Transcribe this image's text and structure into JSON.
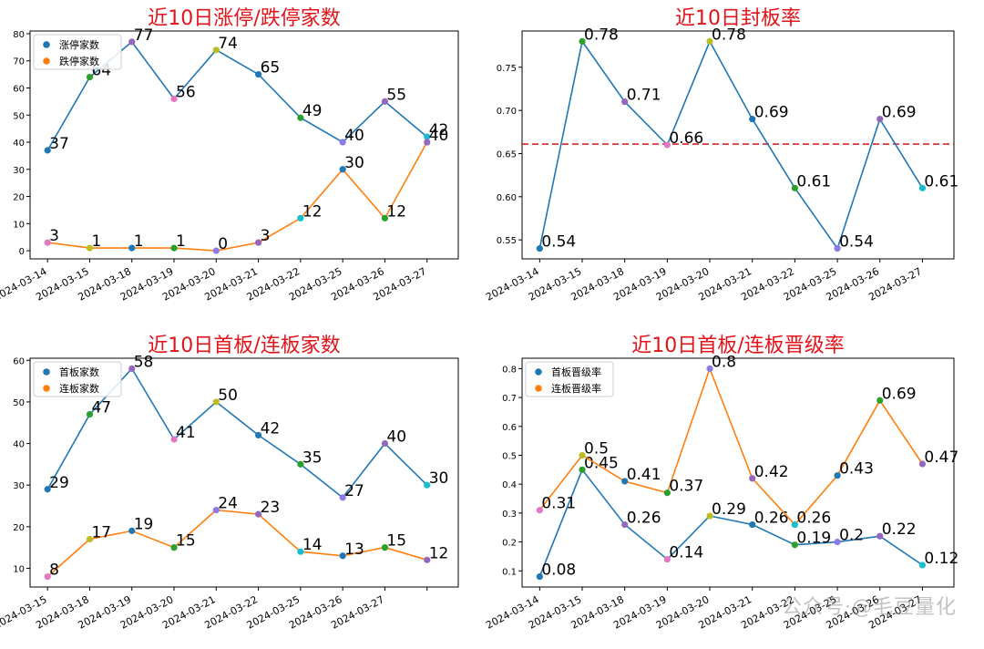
{
  "watermark": "公众号·@毛豆量化",
  "colors": {
    "title": "#e3131a",
    "series1": "#1f77b4",
    "series2": "#ff7f0e",
    "refline": "#d62728",
    "points": [
      "#1f77b4",
      "#2ca02c",
      "#9467bd",
      "#e377c2",
      "#bcbd22",
      "#1f77b4",
      "#2ca02c",
      "#8c7ae6",
      "#9467bd",
      "#17becf"
    ]
  },
  "chart_data": [
    {
      "type": "line",
      "title": "近10日涨停/跌停家数",
      "categories": [
        "2024-03-14",
        "2024-03-15",
        "2024-03-18",
        "2024-03-19",
        "2024-03-20",
        "2024-03-21",
        "2024-03-22",
        "2024-03-25",
        "2024-03-26",
        "2024-03-27"
      ],
      "ylim": [
        -3,
        81
      ],
      "yticks": [
        0,
        10,
        20,
        30,
        40,
        50,
        60,
        70,
        80
      ],
      "ytick_labels": [
        "0",
        "10",
        "20",
        "30",
        "40",
        "50",
        "60",
        "70",
        "80"
      ],
      "legend": "top-left",
      "series": [
        {
          "name": "涨停家数",
          "values": [
            37,
            64,
            77,
            56,
            74,
            65,
            49,
            40,
            55,
            42
          ],
          "labels": [
            "37",
            "64",
            "77",
            "56",
            "74",
            "65",
            "49",
            "40",
            "55",
            "42"
          ]
        },
        {
          "name": "跌停家数",
          "values": [
            3,
            1,
            1,
            1,
            0,
            3,
            12,
            30,
            12,
            40
          ],
          "labels": [
            "3",
            "1",
            "1",
            "1",
            "0",
            "3",
            "12",
            "30",
            "12",
            "40"
          ]
        }
      ],
      "ref_line": null
    },
    {
      "type": "line",
      "title": "近10日封板率",
      "categories": [
        "2024-03-14",
        "2024-03-15",
        "2024-03-18",
        "2024-03-19",
        "2024-03-20",
        "2024-03-21",
        "2024-03-22",
        "2024-03-25",
        "2024-03-26",
        "2024-03-27"
      ],
      "ylim": [
        0.528,
        0.792
      ],
      "yticks": [
        0.55,
        0.6,
        0.65,
        0.7,
        0.75
      ],
      "ytick_labels": [
        "0.55",
        "0.60",
        "0.65",
        "0.70",
        "0.75"
      ],
      "legend": "none",
      "series": [
        {
          "name": "",
          "values": [
            0.54,
            0.78,
            0.71,
            0.66,
            0.78,
            0.69,
            0.61,
            0.54,
            0.69,
            0.61
          ],
          "labels": [
            "0.54",
            "0.78",
            "0.71",
            "0.66",
            "0.78",
            "0.69",
            "0.61",
            "0.54",
            "0.69",
            "0.61"
          ]
        }
      ],
      "ref_line": 0.661
    },
    {
      "type": "line",
      "title": "近10日首板/连板家数",
      "categories": [
        "2024-03-15",
        "2024-03-18",
        "2024-03-19",
        "2024-03-20",
        "2024-03-21",
        "2024-03-22",
        "2024-03-25",
        "2024-03-26",
        "2024-03-27",
        ""
      ],
      "ylim": [
        5.5,
        60.5
      ],
      "yticks": [
        10,
        20,
        30,
        40,
        50,
        60
      ],
      "ytick_labels": [
        "10",
        "20",
        "30",
        "40",
        "50",
        "60"
      ],
      "legend": "top-left",
      "series": [
        {
          "name": "首板家数",
          "values": [
            29,
            47,
            58,
            41,
            50,
            42,
            35,
            27,
            40,
            30
          ],
          "labels": [
            "29",
            "47",
            "58",
            "41",
            "50",
            "42",
            "35",
            "27",
            "40",
            "30"
          ]
        },
        {
          "name": "连板家数",
          "values": [
            8,
            17,
            19,
            15,
            24,
            23,
            14,
            13,
            15,
            12
          ],
          "labels": [
            "8",
            "17",
            "19",
            "15",
            "24",
            "23",
            "14",
            "13",
            "15",
            "12"
          ]
        }
      ],
      "ref_line": null
    },
    {
      "type": "line",
      "title": "近10日首板/连板晋级率",
      "categories": [
        "2024-03-14",
        "2024-03-15",
        "2024-03-18",
        "2024-03-19",
        "2024-03-20",
        "2024-03-21",
        "2024-03-22",
        "2024-03-25",
        "2024-03-26",
        "2024-03-27"
      ],
      "ylim": [
        0.044,
        0.836
      ],
      "yticks": [
        0.1,
        0.2,
        0.3,
        0.4,
        0.5,
        0.6,
        0.7,
        0.8
      ],
      "ytick_labels": [
        "0.1",
        "0.2",
        "0.3",
        "0.4",
        "0.5",
        "0.6",
        "0.7",
        "0.8"
      ],
      "legend": "top-left",
      "series": [
        {
          "name": "首板晋级率",
          "values": [
            0.08,
            0.45,
            0.26,
            0.14,
            0.29,
            0.26,
            0.19,
            0.2,
            0.22,
            0.12
          ],
          "labels": [
            "0.08",
            "0.45",
            "0.26",
            "0.14",
            "0.29",
            "0.26",
            "0.19",
            "0.2",
            "0.22",
            "0.12"
          ]
        },
        {
          "name": "连板晋级率",
          "values": [
            0.31,
            0.5,
            0.41,
            0.37,
            0.8,
            0.42,
            0.26,
            0.43,
            0.69,
            0.47
          ],
          "labels": [
            "0.31",
            "0.5",
            "0.41",
            "0.37",
            "0.8",
            "0.42",
            "0.26",
            "0.43",
            "0.69",
            "0.47"
          ]
        }
      ],
      "ref_line": null
    }
  ]
}
